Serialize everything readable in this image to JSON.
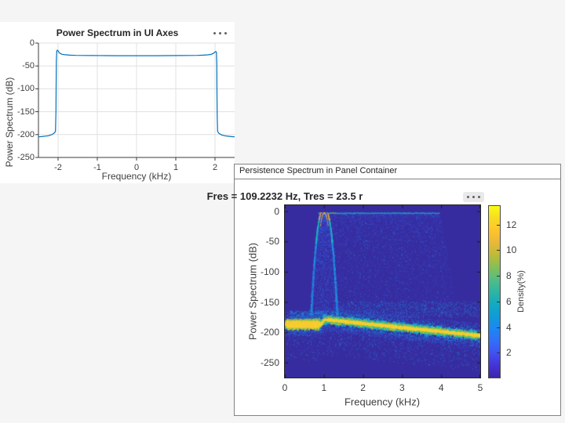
{
  "window": {
    "background": "#f5f5f5"
  },
  "styles": {
    "figure_bg": "#f5f5f5",
    "axes_bg": "#ffffff",
    "panel_bg": "#ffffff",
    "panel_border": "#828282",
    "spine_color": "#3b3b3b",
    "grid_color": "#e0e0e0",
    "tick_label_color": "#3f3f3f",
    "title_color": "#262626",
    "toolbar_dot_color": "#606060",
    "chip_bg": "#e9e9e9"
  },
  "chart_data": [
    {
      "type": "line",
      "title": "Power Spectrum in UI Axes",
      "xlabel": "Frequency (kHz)",
      "ylabel": "Power Spectrum (dB)",
      "xlim": [
        -2.5,
        2.5
      ],
      "ylim": [
        -250,
        0
      ],
      "xticks": [
        -2,
        -1,
        0,
        1,
        2
      ],
      "yticks": [
        0,
        -50,
        -100,
        -150,
        -200,
        -250
      ],
      "grid": true,
      "legend": "none",
      "line_color": "#0072BD",
      "series": [
        {
          "name": "Power Spectrum",
          "points": [
            [
              -2.5,
              -205
            ],
            [
              -2.42,
              -204.5
            ],
            [
              -2.33,
              -203.5
            ],
            [
              -2.25,
              -202.5
            ],
            [
              -2.17,
              -200.5
            ],
            [
              -2.1,
              -197
            ],
            [
              -2.066,
              -193
            ],
            [
              -2.055,
              -150
            ],
            [
              -2.05,
              -100
            ],
            [
              -2.045,
              -40
            ],
            [
              -2.035,
              -18
            ],
            [
              -2.02,
              -15.5
            ],
            [
              -2.0,
              -17
            ],
            [
              -1.98,
              -20
            ],
            [
              -1.95,
              -22.5
            ],
            [
              -1.9,
              -24.5
            ],
            [
              -1.82,
              -25.5
            ],
            [
              -1.7,
              -26.3
            ],
            [
              -1.55,
              -26.8
            ],
            [
              -1.35,
              -27
            ],
            [
              -1.1,
              -27.2
            ],
            [
              -0.8,
              -27.4
            ],
            [
              -0.5,
              -27.5
            ],
            [
              -0.2,
              -27.6
            ],
            [
              0,
              -27.6
            ],
            [
              0.2,
              -27.6
            ],
            [
              0.5,
              -27.5
            ],
            [
              0.8,
              -27.4
            ],
            [
              1.1,
              -27.2
            ],
            [
              1.35,
              -27
            ],
            [
              1.55,
              -26.8
            ],
            [
              1.7,
              -26.4
            ],
            [
              1.82,
              -25.6
            ],
            [
              1.9,
              -24.6
            ],
            [
              1.95,
              -22.8
            ],
            [
              1.98,
              -21
            ],
            [
              2.0,
              -19.5
            ],
            [
              2.02,
              -18.5
            ],
            [
              2.035,
              -20
            ],
            [
              2.045,
              -45
            ],
            [
              2.05,
              -110
            ],
            [
              2.055,
              -160
            ],
            [
              2.066,
              -193
            ],
            [
              2.1,
              -197.5
            ],
            [
              2.17,
              -200.8
            ],
            [
              2.25,
              -202.6
            ],
            [
              2.33,
              -203.6
            ],
            [
              2.42,
              -204.5
            ],
            [
              2.5,
              -205
            ]
          ]
        }
      ]
    },
    {
      "type": "heatmap",
      "container_title": "Persistence Spectrum in Panel Container",
      "title": "Fres = 109.2232 Hz, Tres = 23.5 r",
      "xlabel": "Frequency (kHz)",
      "ylabel": "Power Spectrum (dB)",
      "xlim": [
        0,
        5
      ],
      "ylim": [
        -275,
        10
      ],
      "xticks": [
        0,
        1,
        2,
        3,
        4,
        5
      ],
      "yticks": [
        0,
        -50,
        -100,
        -150,
        -200,
        -250
      ],
      "grid": false,
      "colorbar": {
        "label": "Density(%)",
        "ticks": [
          2,
          4,
          6,
          8,
          10,
          12
        ],
        "range": [
          0,
          13.5
        ],
        "colormap": [
          "#3e26a8",
          "#4433d8",
          "#4152f2",
          "#3070f7",
          "#1d87f2",
          "#0f9bd8",
          "#13aac0",
          "#2eb6a2",
          "#52bd86",
          "#85bf58",
          "#bcbc37",
          "#e9b83a",
          "#fec42c",
          "#f7dc22",
          "#f9fb14"
        ]
      },
      "heatmap_features": {
        "background": "#372c9f",
        "palette": {
          "yellow": "#f6d32d",
          "gold": "#fdc338",
          "orange": "#f08c28",
          "green": "#9cc53c",
          "teal": "#2fbf9a",
          "cyan": "#18a7dc",
          "blue": "#2f6be4",
          "indigo": "#3b49cf"
        },
        "chirp_arch": {
          "center_khz": 1.0,
          "top_db": -2,
          "bottom_db": -171,
          "half_width_top": 0.06,
          "half_width_bottom": 0.36
        },
        "sidelobe_curtain": {
          "x_from": 0.86,
          "x_to_top": 3.95,
          "x_to_bottom": 4.45,
          "top_db": -2,
          "bottom_db": -171
        },
        "noise_floor": {
          "left_center_db": -186,
          "streak_from": [
            1.0,
            -178
          ],
          "streak_to": [
            5.0,
            -204.8
          ],
          "scatter_bottom_db": -256
        },
        "seed": 1234
      }
    }
  ]
}
